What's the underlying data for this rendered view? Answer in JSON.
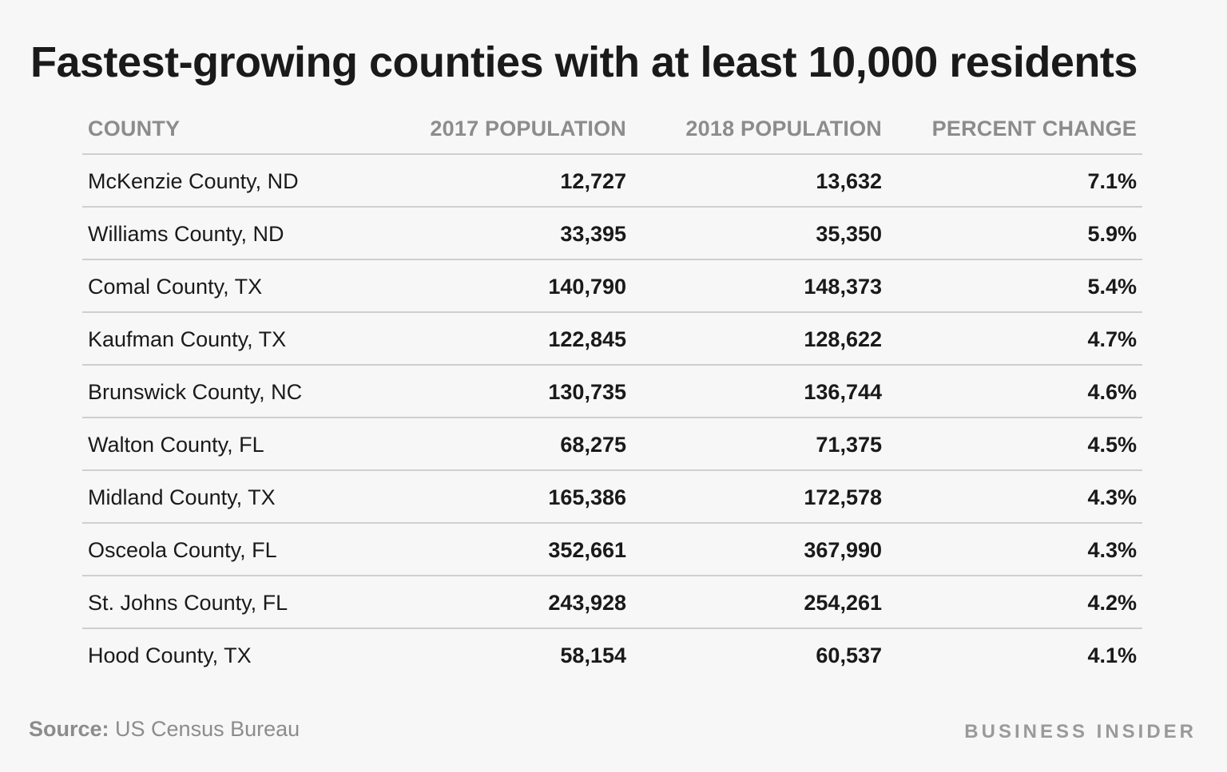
{
  "chart_data": {
    "type": "table",
    "title": "Fastest-growing counties with at least 10,000 residents",
    "columns": [
      "COUNTY",
      "2017 POPULATION",
      "2018 POPULATION",
      "PERCENT CHANGE"
    ],
    "rows": [
      {
        "county": "McKenzie County, ND",
        "pop2017": "12,727",
        "pop2018": "13,632",
        "change": "7.1%"
      },
      {
        "county": "Williams County, ND",
        "pop2017": "33,395",
        "pop2018": "35,350",
        "change": "5.9%"
      },
      {
        "county": "Comal County, TX",
        "pop2017": "140,790",
        "pop2018": "148,373",
        "change": "5.4%"
      },
      {
        "county": "Kaufman County, TX",
        "pop2017": "122,845",
        "pop2018": "128,622",
        "change": "4.7%"
      },
      {
        "county": "Brunswick County, NC",
        "pop2017": "130,735",
        "pop2018": "136,744",
        "change": "4.6%"
      },
      {
        "county": "Walton County, FL",
        "pop2017": "68,275",
        "pop2018": "71,375",
        "change": "4.5%"
      },
      {
        "county": "Midland County, TX",
        "pop2017": "165,386",
        "pop2018": "172,578",
        "change": "4.3%"
      },
      {
        "county": "Osceola County, FL",
        "pop2017": "352,661",
        "pop2018": "367,990",
        "change": "4.3%"
      },
      {
        "county": "St. Johns County, FL",
        "pop2017": "243,928",
        "pop2018": "254,261",
        "change": "4.2%"
      },
      {
        "county": "Hood County, TX",
        "pop2017": "58,154",
        "pop2018": "60,537",
        "change": "4.1%"
      }
    ]
  },
  "footer": {
    "source_label": "Source:",
    "source_text": " US Census Bureau",
    "brand": "BUSINESS INSIDER"
  }
}
